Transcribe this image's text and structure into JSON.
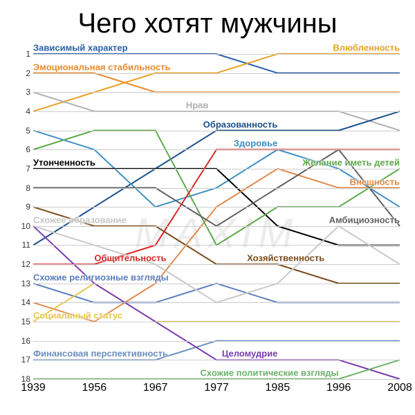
{
  "title": "Чего хотят мужчины",
  "watermark": "MAXIM",
  "chart": {
    "type": "line",
    "background_color": "#ffffff",
    "grid_color": "#cccccc",
    "title_fontsize": 40,
    "label_fontsize": 13,
    "axis_fontsize": 16,
    "ylim": [
      1,
      18
    ],
    "y_inverted": true,
    "yticks": [
      1,
      2,
      3,
      4,
      5,
      6,
      7,
      8,
      9,
      10,
      11,
      12,
      13,
      14,
      15,
      16,
      17,
      18
    ],
    "x_categories": [
      "1939",
      "1956",
      "1967",
      "1977",
      "1985",
      "1996",
      "2008"
    ],
    "line_width": 2,
    "series": [
      {
        "name": "Зависимый характер",
        "color": "#2b5fa8",
        "values": [
          1,
          1,
          1,
          1,
          2,
          2,
          2
        ],
        "label_side": "left",
        "label_at": 0
      },
      {
        "name": "Влюбленность",
        "color": "#e8a020",
        "values": [
          4,
          3,
          2,
          2,
          1,
          1,
          1
        ],
        "label_side": "right",
        "label_at": 6
      },
      {
        "name": "Эмоциональная стабильность",
        "color": "#e88a2e",
        "values": [
          2,
          2,
          3,
          3,
          3,
          3,
          3
        ],
        "label_side": "left",
        "label_at": 0
      },
      {
        "name": "Нрав",
        "color": "#b0b0b0",
        "values": [
          3,
          4,
          4,
          4,
          4,
          4,
          5
        ],
        "label_side": "left",
        "label_at": 2.5
      },
      {
        "name": "Образованность",
        "color": "#1a4f8a",
        "values": [
          11,
          9,
          7,
          5,
          5,
          5,
          4
        ],
        "label_side": "right",
        "label_at": 4
      },
      {
        "name": "Здоровье",
        "color": "#3d8fc1",
        "values": [
          5,
          6,
          9,
          8,
          6,
          7,
          9
        ],
        "label_side": "right",
        "label_at": 4
      },
      {
        "name": "Утонченность",
        "color": "#000000",
        "values": [
          7,
          7,
          7,
          7,
          10,
          11,
          11
        ],
        "label_side": "left",
        "label_at": 0
      },
      {
        "name": "Внешность",
        "color": "#e08a4a",
        "values": [
          14,
          15,
          13,
          9,
          7,
          8,
          8
        ],
        "label_side": "right",
        "label_at": 6
      },
      {
        "name": "Желание иметь детей",
        "color": "#5ca84a",
        "values": [
          6,
          5,
          5,
          11,
          9,
          9,
          7
        ],
        "label_side": "right",
        "label_at": 6
      },
      {
        "name": "Амбициозность",
        "color": "#606060",
        "values": [
          8,
          8,
          8,
          10,
          8,
          6,
          10
        ],
        "label_side": "right",
        "label_at": 6
      },
      {
        "name": "Общительность",
        "color": "#d82828",
        "values": [
          12,
          12,
          11,
          6,
          6,
          6,
          6
        ],
        "label_side": "left",
        "label_at": 1
      },
      {
        "name": "Хозяйственность",
        "color": "#7a4a1a",
        "values": [
          9,
          10,
          10,
          12,
          12,
          13,
          13
        ],
        "label_side": "left",
        "label_at": 3.5
      },
      {
        "name": "Схожие религиозные взгляды",
        "color": "#5a7ec0",
        "values": [
          13,
          14,
          14,
          13,
          14,
          14,
          14
        ],
        "label_side": "left",
        "label_at": 0
      },
      {
        "name": "Схожее образование",
        "color": "#c8c8c8",
        "values": [
          10,
          11,
          12,
          14,
          13,
          10,
          12
        ],
        "label_side": "left",
        "label_at": 0
      },
      {
        "name": "Социальный статус",
        "color": "#e8c54a",
        "values": [
          15,
          13,
          15,
          15,
          15,
          15,
          15
        ],
        "label_side": "left",
        "label_at": 0
      },
      {
        "name": "Финансовая перспективность",
        "color": "#6a8ec0",
        "values": [
          17,
          17,
          17,
          16,
          16,
          16,
          16
        ],
        "label_side": "left",
        "label_at": 0
      },
      {
        "name": "Целомудрие",
        "color": "#7a3ab0",
        "values": [
          10,
          13,
          15,
          17,
          17,
          17,
          18
        ],
        "label_side": "right",
        "label_at": 4
      },
      {
        "name": "Схожие политические взгляды",
        "color": "#6ab06a",
        "values": [
          18,
          18,
          18,
          18,
          18,
          18,
          17
        ],
        "label_side": "right",
        "label_at": 5
      }
    ]
  }
}
